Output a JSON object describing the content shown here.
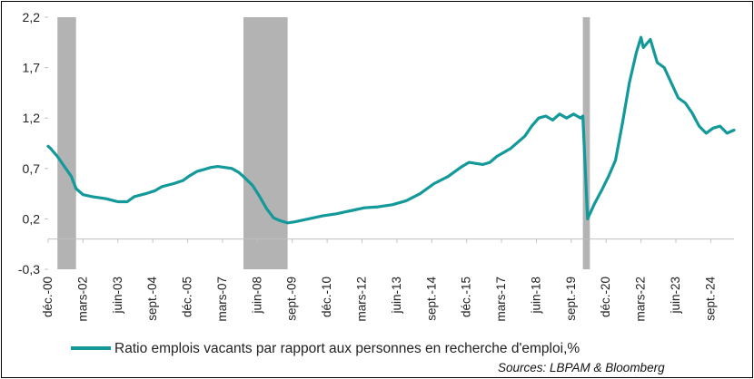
{
  "chart_data": {
    "type": "line",
    "title": "",
    "xlabel": "",
    "ylabel": "",
    "ylim": [
      -0.3,
      2.2
    ],
    "yticks": [
      "-0,3",
      "0,2",
      "0,7",
      "1,2",
      "1,7",
      "2,2"
    ],
    "ytick_values": [
      -0.3,
      0.2,
      0.7,
      1.2,
      1.7,
      2.2
    ],
    "xlim": [
      2000.917,
      2025.5
    ],
    "xticks": [
      {
        "label": "déc.-00",
        "x": 2000.917
      },
      {
        "label": "mars-02",
        "x": 2002.167
      },
      {
        "label": "juin-03",
        "x": 2003.417
      },
      {
        "label": "sept.-04",
        "x": 2004.667
      },
      {
        "label": "déc.-05",
        "x": 2005.917
      },
      {
        "label": "mars-07",
        "x": 2007.167
      },
      {
        "label": "juin-08",
        "x": 2008.417
      },
      {
        "label": "sept.-09",
        "x": 2009.667
      },
      {
        "label": "déc.-10",
        "x": 2010.917
      },
      {
        "label": "mars-12",
        "x": 2012.167
      },
      {
        "label": "juin-13",
        "x": 2013.417
      },
      {
        "label": "sept.-14",
        "x": 2014.667
      },
      {
        "label": "déc.-15",
        "x": 2015.917
      },
      {
        "label": "mars-17",
        "x": 2017.167
      },
      {
        "label": "juin-18",
        "x": 2018.417
      },
      {
        "label": "sept.-19",
        "x": 2019.667
      },
      {
        "label": "déc.-20",
        "x": 2020.917
      },
      {
        "label": "mars-22",
        "x": 2022.167
      },
      {
        "label": "juin-23",
        "x": 2023.417
      },
      {
        "label": "sept.-24",
        "x": 2024.667
      }
    ],
    "recessions": [
      {
        "start": 2001.25,
        "end": 2001.917
      },
      {
        "start": 2007.917,
        "end": 2009.5
      },
      {
        "start": 2020.083,
        "end": 2020.333
      }
    ],
    "grid": false,
    "legend_position": "bottom",
    "series": [
      {
        "name": "Ratio emplois vacants par rapport aux personnes en recherche d'emploi,%",
        "color": "#13999a",
        "points": [
          [
            2000.917,
            0.92
          ],
          [
            2001.0,
            0.9
          ],
          [
            2001.25,
            0.82
          ],
          [
            2001.5,
            0.72
          ],
          [
            2001.75,
            0.62
          ],
          [
            2001.917,
            0.5
          ],
          [
            2002.167,
            0.44
          ],
          [
            2002.5,
            0.42
          ],
          [
            2003.0,
            0.4
          ],
          [
            2003.417,
            0.37
          ],
          [
            2003.75,
            0.37
          ],
          [
            2004.0,
            0.42
          ],
          [
            2004.417,
            0.45
          ],
          [
            2004.75,
            0.48
          ],
          [
            2005.0,
            0.52
          ],
          [
            2005.417,
            0.55
          ],
          [
            2005.75,
            0.58
          ],
          [
            2006.0,
            0.63
          ],
          [
            2006.25,
            0.67
          ],
          [
            2006.5,
            0.69
          ],
          [
            2006.75,
            0.71
          ],
          [
            2007.0,
            0.72
          ],
          [
            2007.25,
            0.71
          ],
          [
            2007.5,
            0.7
          ],
          [
            2007.75,
            0.66
          ],
          [
            2007.917,
            0.62
          ],
          [
            2008.25,
            0.53
          ],
          [
            2008.5,
            0.42
          ],
          [
            2008.75,
            0.3
          ],
          [
            2009.0,
            0.21
          ],
          [
            2009.25,
            0.18
          ],
          [
            2009.5,
            0.16
          ],
          [
            2009.75,
            0.17
          ],
          [
            2010.25,
            0.2
          ],
          [
            2010.75,
            0.23
          ],
          [
            2011.25,
            0.25
          ],
          [
            2011.75,
            0.28
          ],
          [
            2012.25,
            0.31
          ],
          [
            2012.75,
            0.32
          ],
          [
            2013.25,
            0.34
          ],
          [
            2013.75,
            0.38
          ],
          [
            2014.25,
            0.45
          ],
          [
            2014.75,
            0.55
          ],
          [
            2015.25,
            0.62
          ],
          [
            2015.75,
            0.72
          ],
          [
            2016.0,
            0.76
          ],
          [
            2016.5,
            0.74
          ],
          [
            2016.75,
            0.76
          ],
          [
            2017.0,
            0.82
          ],
          [
            2017.5,
            0.9
          ],
          [
            2018.0,
            1.02
          ],
          [
            2018.25,
            1.12
          ],
          [
            2018.5,
            1.2
          ],
          [
            2018.75,
            1.22
          ],
          [
            2019.0,
            1.18
          ],
          [
            2019.25,
            1.24
          ],
          [
            2019.5,
            1.2
          ],
          [
            2019.75,
            1.24
          ],
          [
            2020.0,
            1.2
          ],
          [
            2020.083,
            1.22
          ],
          [
            2020.25,
            0.2
          ],
          [
            2020.5,
            0.35
          ],
          [
            2020.75,
            0.48
          ],
          [
            2021.0,
            0.62
          ],
          [
            2021.25,
            0.78
          ],
          [
            2021.5,
            1.15
          ],
          [
            2021.75,
            1.55
          ],
          [
            2022.0,
            1.85
          ],
          [
            2022.167,
            2.0
          ],
          [
            2022.25,
            1.9
          ],
          [
            2022.5,
            1.98
          ],
          [
            2022.75,
            1.75
          ],
          [
            2023.0,
            1.7
          ],
          [
            2023.25,
            1.55
          ],
          [
            2023.5,
            1.4
          ],
          [
            2023.75,
            1.35
          ],
          [
            2024.0,
            1.25
          ],
          [
            2024.25,
            1.12
          ],
          [
            2024.5,
            1.05
          ],
          [
            2024.75,
            1.1
          ],
          [
            2025.0,
            1.12
          ],
          [
            2025.25,
            1.05
          ],
          [
            2025.5,
            1.08
          ]
        ]
      }
    ]
  },
  "legend": {
    "label": "Ratio emplois vacants par rapport aux personnes en recherche d'emploi,%",
    "color": "#13999a"
  },
  "source": "Sources: LBPAM & Bloomberg",
  "colors": {
    "recession_band": "#b3b3b3",
    "axis": "#bfbfbf"
  }
}
